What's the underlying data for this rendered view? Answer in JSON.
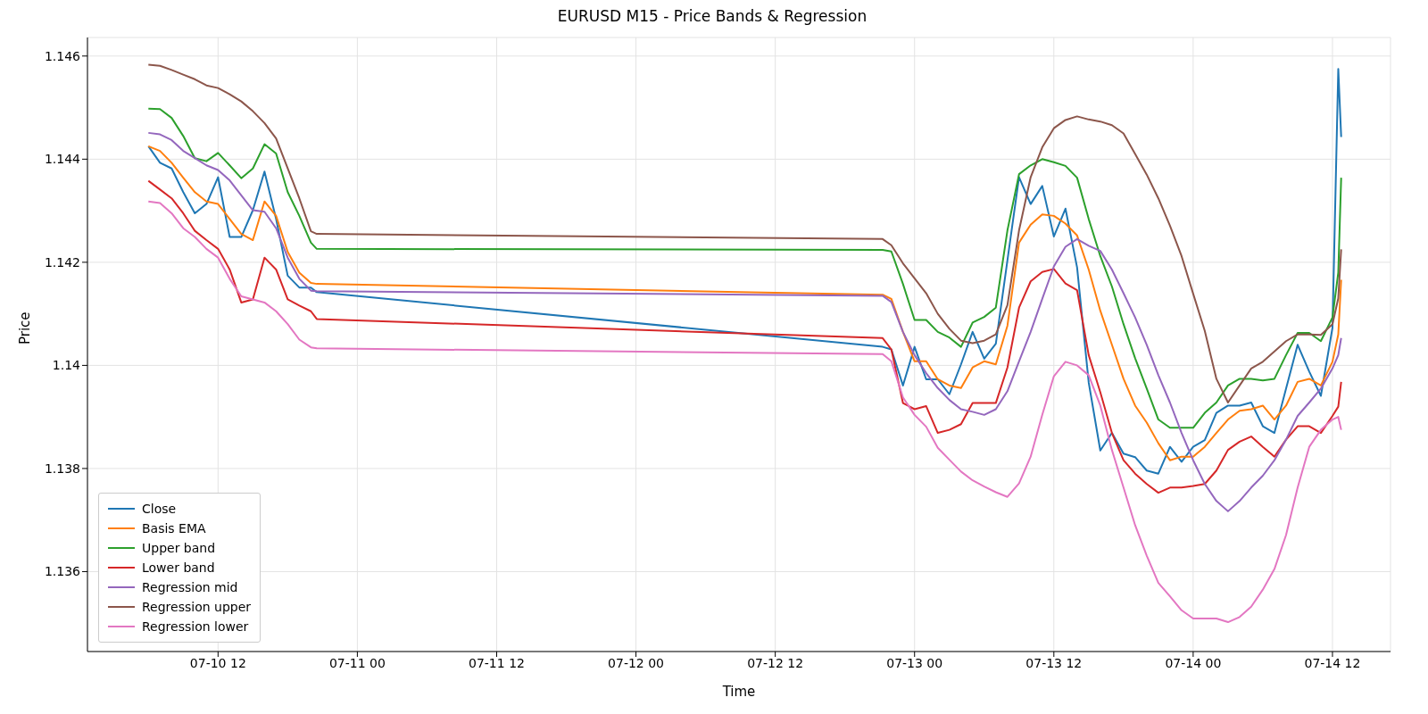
{
  "chart_data": {
    "type": "line",
    "title": "EURUSD M15 - Price Bands & Regression",
    "xlabel": "Time",
    "ylabel": "Price",
    "x": [
      "--07-10T06:00",
      "--07-10T07:00",
      "--07-10T08:00",
      "--07-10T09:00",
      "--07-10T10:00",
      "--07-10T11:00",
      "--07-10T12:00",
      "--07-10T13:00",
      "--07-10T14:00",
      "--07-10T15:00",
      "--07-10T16:00",
      "--07-10T17:00",
      "--07-10T18:00",
      "--07-10T19:00",
      "--07-10T20:00",
      "--07-10T20:30",
      "--07-12T21:15",
      "--07-12T22:00",
      "--07-12T23:00",
      "--07-13T00:00",
      "--07-13T01:00",
      "--07-13T02:00",
      "--07-13T03:00",
      "--07-13T04:00",
      "--07-13T05:00",
      "--07-13T06:00",
      "--07-13T07:00",
      "--07-13T08:00",
      "--07-13T09:00",
      "--07-13T10:00",
      "--07-13T11:00",
      "--07-13T12:00",
      "--07-13T13:00",
      "--07-13T14:00",
      "--07-13T15:00",
      "--07-13T16:00",
      "--07-13T17:00",
      "--07-13T18:00",
      "--07-13T19:00",
      "--07-13T20:00",
      "--07-13T21:00",
      "--07-13T22:00",
      "--07-13T23:00",
      "--07-14T00:00",
      "--07-14T01:00",
      "--07-14T02:00",
      "--07-14T03:00",
      "--07-14T04:00",
      "--07-14T05:00",
      "--07-14T06:00",
      "--07-14T07:00",
      "--07-14T08:00",
      "--07-14T09:00",
      "--07-14T10:00",
      "--07-14T11:00",
      "--07-14T12:00",
      "--07-14T12:30",
      "--07-14T12:45"
    ],
    "series": [
      {
        "name": "Close",
        "color": "#1f77b4",
        "values": [
          1.14425,
          1.14393,
          1.14382,
          1.14336,
          1.14295,
          1.14313,
          1.14365,
          1.14249,
          1.14249,
          1.14301,
          1.14376,
          1.14284,
          1.14174,
          1.14151,
          1.14151,
          1.14142,
          1.14036,
          1.14031,
          1.13961,
          1.14036,
          1.13973,
          1.13973,
          1.13944,
          1.14002,
          1.14065,
          1.14013,
          1.14042,
          1.14204,
          1.14365,
          1.14313,
          1.14348,
          1.1425,
          1.14304,
          1.1419,
          1.13967,
          1.13835,
          1.13869,
          1.13829,
          1.13822,
          1.13796,
          1.1379,
          1.13842,
          1.13813,
          1.13842,
          1.13855,
          1.13908,
          1.13922,
          1.13922,
          1.13928,
          1.13882,
          1.13869,
          1.13955,
          1.1404,
          1.13988,
          1.13941,
          1.14073,
          1.14575,
          1.14443
        ]
      },
      {
        "name": "Basis EMA",
        "color": "#ff7f0e",
        "values": [
          1.14425,
          1.14416,
          1.14393,
          1.14364,
          1.14336,
          1.14318,
          1.14313,
          1.14284,
          1.14255,
          1.14243,
          1.14318,
          1.1429,
          1.1422,
          1.1418,
          1.1416,
          1.14158,
          1.14137,
          1.14129,
          1.14065,
          1.14008,
          1.14008,
          1.13973,
          1.13961,
          1.13956,
          1.13996,
          1.14008,
          1.14002,
          1.14077,
          1.14238,
          1.14273,
          1.14293,
          1.1429,
          1.14275,
          1.14252,
          1.14186,
          1.14106,
          1.1404,
          1.13974,
          1.13922,
          1.13889,
          1.13849,
          1.13816,
          1.13823,
          1.13823,
          1.13842,
          1.13869,
          1.13895,
          1.13912,
          1.13915,
          1.13922,
          1.13895,
          1.13922,
          1.13968,
          1.13974,
          1.13961,
          1.14007,
          1.1406,
          1.14166
        ]
      },
      {
        "name": "Upper band",
        "color": "#2ca02c",
        "values": [
          1.14498,
          1.14497,
          1.1448,
          1.14445,
          1.14402,
          1.14396,
          1.14412,
          1.14388,
          1.14363,
          1.14382,
          1.14429,
          1.14411,
          1.14336,
          1.1429,
          1.14238,
          1.14226,
          1.14224,
          1.14221,
          1.14158,
          1.14088,
          1.14088,
          1.14065,
          1.14054,
          1.14036,
          1.14083,
          1.14094,
          1.14112,
          1.14262,
          1.14371,
          1.14388,
          1.144,
          1.14394,
          1.14387,
          1.14364,
          1.14284,
          1.14212,
          1.14153,
          1.1408,
          1.14014,
          1.13955,
          1.13895,
          1.13879,
          1.13879,
          1.13879,
          1.13908,
          1.13928,
          1.13961,
          1.13974,
          1.13974,
          1.13971,
          1.13974,
          1.1402,
          1.14063,
          1.14063,
          1.14047,
          1.14093,
          1.1418,
          1.14364
        ]
      },
      {
        "name": "Lower band",
        "color": "#d62728",
        "values": [
          1.14358,
          1.14341,
          1.14324,
          1.14295,
          1.14261,
          1.14243,
          1.14226,
          1.14186,
          1.14122,
          1.14128,
          1.14209,
          1.14186,
          1.14128,
          1.14116,
          1.14105,
          1.1409,
          1.14053,
          1.14031,
          1.13927,
          1.13915,
          1.13921,
          1.13869,
          1.13875,
          1.13886,
          1.13927,
          1.13927,
          1.13927,
          1.13996,
          1.14112,
          1.14163,
          1.14181,
          1.14187,
          1.14159,
          1.14146,
          1.1402,
          1.13948,
          1.13869,
          1.13816,
          1.1379,
          1.1377,
          1.13753,
          1.13763,
          1.13763,
          1.13766,
          1.1377,
          1.13796,
          1.13836,
          1.13852,
          1.13862,
          1.13842,
          1.13823,
          1.13856,
          1.13882,
          1.13882,
          1.13869,
          1.13902,
          1.1392,
          1.13968
        ]
      },
      {
        "name": "Regression mid",
        "color": "#9467bd",
        "values": [
          1.14451,
          1.14448,
          1.14437,
          1.14416,
          1.14402,
          1.14388,
          1.14379,
          1.14359,
          1.1433,
          1.14301,
          1.14298,
          1.14266,
          1.14209,
          1.14168,
          1.14145,
          1.14144,
          1.14135,
          1.14123,
          1.14065,
          1.1402,
          1.13985,
          1.13956,
          1.13933,
          1.13915,
          1.1391,
          1.13904,
          1.13915,
          1.1395,
          1.14008,
          1.14065,
          1.14129,
          1.14192,
          1.1423,
          1.14245,
          1.14232,
          1.14222,
          1.14186,
          1.1414,
          1.14093,
          1.1404,
          1.13981,
          1.13928,
          1.13869,
          1.13816,
          1.1377,
          1.13737,
          1.13717,
          1.13737,
          1.13763,
          1.13786,
          1.13816,
          1.13856,
          1.13902,
          1.13928,
          1.13955,
          1.13994,
          1.1402,
          1.14053
        ]
      },
      {
        "name": "Regression upper",
        "color": "#8c564b",
        "values": [
          1.14583,
          1.14581,
          1.14573,
          1.14564,
          1.14555,
          1.14543,
          1.14538,
          1.14526,
          1.14512,
          1.14493,
          1.1447,
          1.1444,
          1.14382,
          1.14324,
          1.1426,
          1.14255,
          1.14245,
          1.14233,
          1.14198,
          1.14169,
          1.1414,
          1.141,
          1.14071,
          1.14048,
          1.14043,
          1.14048,
          1.1406,
          1.14117,
          1.14262,
          1.14365,
          1.14423,
          1.1446,
          1.14476,
          1.14483,
          1.14477,
          1.14473,
          1.14466,
          1.1445,
          1.1441,
          1.1437,
          1.14324,
          1.14271,
          1.14212,
          1.14139,
          1.14067,
          1.13974,
          1.13928,
          1.13961,
          1.13994,
          1.14007,
          1.14027,
          1.14047,
          1.1406,
          1.1406,
          1.14059,
          1.1408,
          1.1413,
          1.14225
        ]
      },
      {
        "name": "Regression lower",
        "color": "#e377c2",
        "values": [
          1.14318,
          1.14315,
          1.14295,
          1.14266,
          1.14249,
          1.14226,
          1.14209,
          1.14168,
          1.14134,
          1.14128,
          1.14122,
          1.14105,
          1.1408,
          1.1405,
          1.14035,
          1.14033,
          1.14022,
          1.14008,
          1.13938,
          1.13904,
          1.13881,
          1.1384,
          1.13817,
          1.13794,
          1.13777,
          1.13765,
          1.13754,
          1.13745,
          1.13771,
          1.13823,
          1.13904,
          1.13979,
          1.14007,
          1.14,
          1.13981,
          1.13922,
          1.13836,
          1.13763,
          1.1369,
          1.13631,
          1.13578,
          1.13552,
          1.13525,
          1.13509,
          1.13509,
          1.13509,
          1.13502,
          1.13512,
          1.13532,
          1.13565,
          1.13605,
          1.13671,
          1.13763,
          1.13842,
          1.13875,
          1.13895,
          1.139,
          1.13875
        ]
      }
    ],
    "xlim": [
      "--07-10T00:45",
      "--07-14T17:00"
    ],
    "xticks": [
      {
        "value": "--07-10T12:00",
        "label": "07-10 12"
      },
      {
        "value": "--07-11T00:00",
        "label": "07-11 00"
      },
      {
        "value": "--07-11T12:00",
        "label": "07-11 12"
      },
      {
        "value": "--07-12T00:00",
        "label": "07-12 00"
      },
      {
        "value": "--07-12T12:00",
        "label": "07-12 12"
      },
      {
        "value": "--07-13T00:00",
        "label": "07-13 00"
      },
      {
        "value": "--07-13T12:00",
        "label": "07-13 12"
      },
      {
        "value": "--07-14T00:00",
        "label": "07-14 00"
      },
      {
        "value": "--07-14T12:00",
        "label": "07-14 12"
      }
    ],
    "ylim": [
      1.13445,
      1.14636
    ],
    "yticks": [
      1.136,
      1.138,
      1.14,
      1.142,
      1.144,
      1.146
    ],
    "grid": true,
    "legend": "bottom left",
    "marker": "none",
    "line_style": "solid"
  }
}
